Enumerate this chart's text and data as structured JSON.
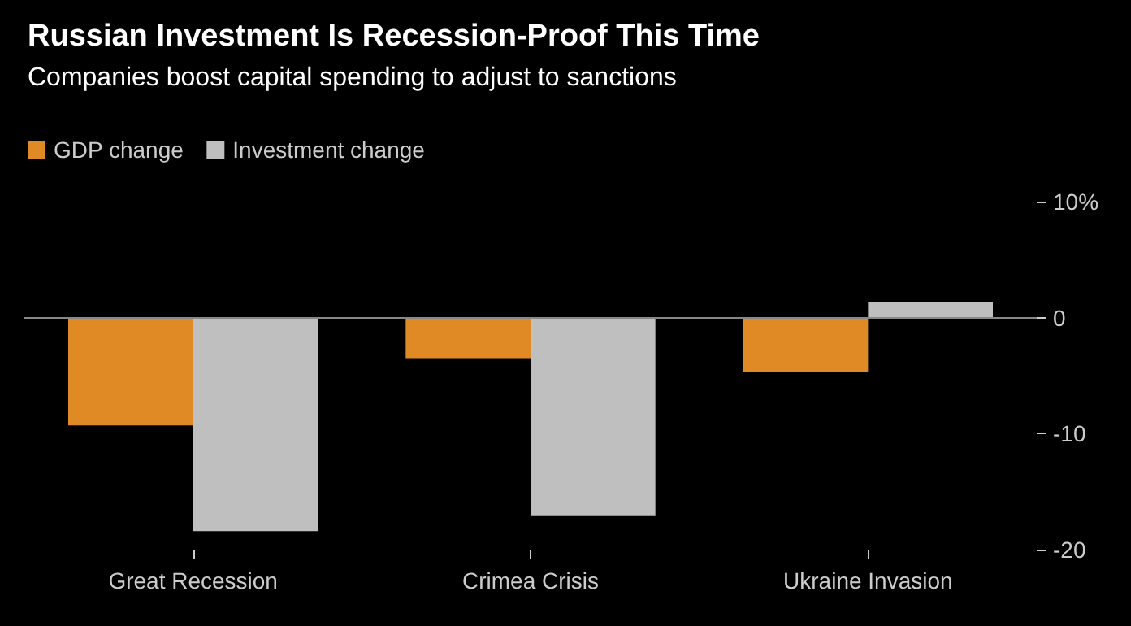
{
  "chart_data": {
    "type": "bar",
    "title": "Russian Investment Is Recession-Proof This Time",
    "subtitle": "Companies boost capital spending to adjust to sanctions",
    "categories": [
      "Great Recession",
      "Crimea Crisis",
      "Ukraine Invasion"
    ],
    "series": [
      {
        "name": "GDP change",
        "color": "#e08a26",
        "values": [
          -9.3,
          -3.5,
          -4.7
        ]
      },
      {
        "name": "Investment change",
        "color": "#bfbfbf",
        "values": [
          -18.4,
          -17.1,
          1.3
        ]
      }
    ],
    "ref_lines": [
      {
        "axis": "y",
        "value": 0,
        "color": "#888888"
      }
    ],
    "ylim": [
      -20,
      10
    ],
    "yticks": [
      {
        "value": 10,
        "label": "10%"
      },
      0,
      -10,
      -20
    ],
    "grid": false,
    "legend": "top left"
  }
}
